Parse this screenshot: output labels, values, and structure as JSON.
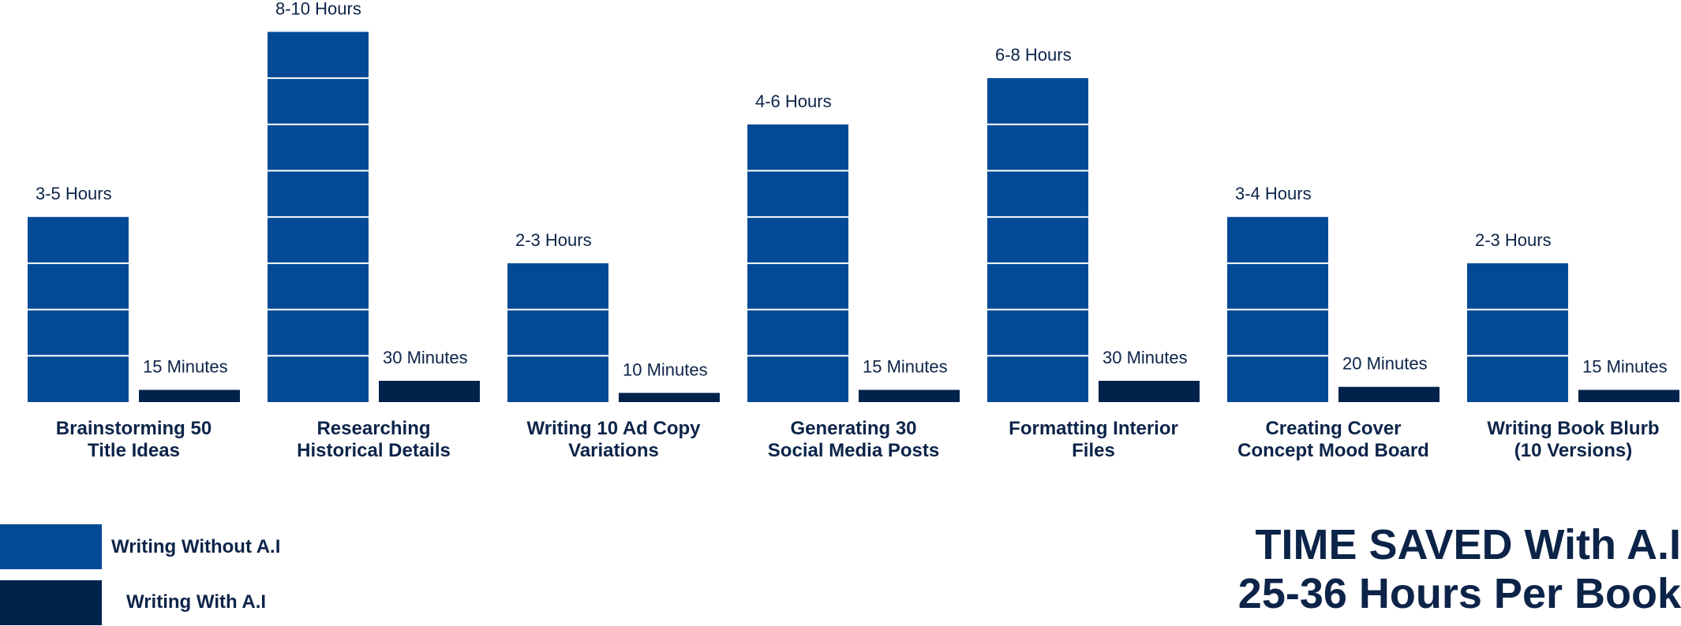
{
  "chart_data": {
    "type": "bar",
    "categories": [
      [
        "Brainstorming 50",
        "Title Ideas"
      ],
      [
        "Researching",
        "Historical Details"
      ],
      [
        "Writing 10 Ad Copy",
        "Variations"
      ],
      [
        "Generating 30",
        "Social Media Posts"
      ],
      [
        "Formatting Interior",
        "Files"
      ],
      [
        "Creating Cover",
        "Concept Mood Board"
      ],
      [
        "Writing Book Blurb",
        "(10 Versions)"
      ]
    ],
    "series": [
      {
        "name": "Writing Without A.I",
        "color": "#034a96",
        "values_hours": [
          4,
          8,
          3,
          6,
          7,
          4,
          3
        ],
        "labels": [
          "3-5 Hours",
          "8-10 Hours",
          "2-3 Hours",
          "4-6 Hours",
          "6-8 Hours",
          "3-4 Hours",
          "2-3 Hours"
        ]
      },
      {
        "name": "Writing With A.I",
        "color": "#01224b",
        "values_minutes": [
          15,
          30,
          10,
          15,
          30,
          20,
          15
        ],
        "labels": [
          "15 Minutes",
          "30 Minutes",
          "10 Minutes",
          "15 Minutes",
          "30 Minutes",
          "20 Minutes",
          "15 Minutes"
        ]
      }
    ],
    "legend_position": "bottom-left",
    "grid": false
  },
  "legend": {
    "without_label": "Writing Without A.I",
    "with_label": "Writing With A.I"
  },
  "summary": {
    "line1": "TIME SAVED With A.I",
    "line2": "25-36 Hours Per Book"
  },
  "colors": {
    "without_ai": "#034a96",
    "with_ai": "#01224b",
    "text": "#0d2449"
  }
}
